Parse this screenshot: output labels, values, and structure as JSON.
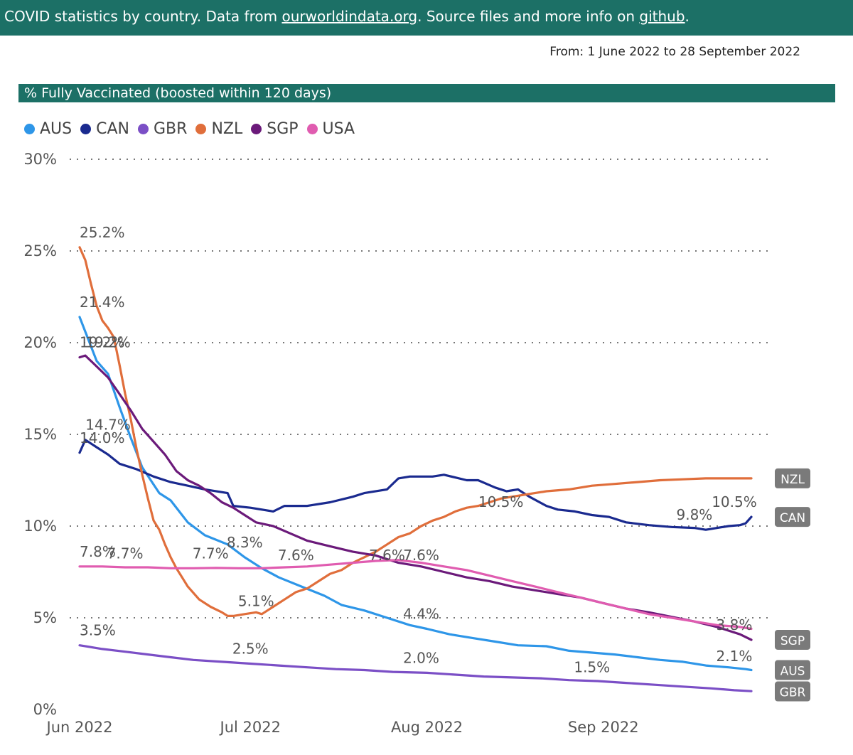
{
  "header": {
    "prefix": "COVID statistics by country. Data from ",
    "link1": "ourworldindata.org",
    "middle": ". Source files and more info on ",
    "link2": "github",
    "suffix": "."
  },
  "date_range": "From: 1 June 2022 to 28 September 2022",
  "chart_data": {
    "type": "line",
    "title": "% Fully Vaccinated (boosted within 120 days)",
    "xlabel": "",
    "ylabel": "",
    "ylim": [
      0,
      30
    ],
    "xlim_days": [
      0,
      119
    ],
    "y_ticks": [
      "0%",
      "5%",
      "10%",
      "15%",
      "20%",
      "25%",
      "30%"
    ],
    "x_ticks": [
      {
        "label": "Jun 2022",
        "day": 0
      },
      {
        "label": "Jul 2022",
        "day": 30
      },
      {
        "label": "Aug 2022",
        "day": 61
      },
      {
        "label": "Sep 2022",
        "day": 92
      }
    ],
    "grid": true,
    "legend_position": "top-left",
    "series": [
      {
        "name": "AUS",
        "color": "#2e96e8",
        "points": [
          [
            0,
            21.4
          ],
          [
            3,
            19.0
          ],
          [
            5,
            18.3
          ],
          [
            7,
            16.5
          ],
          [
            9,
            14.8
          ],
          [
            11,
            13.2
          ],
          [
            14,
            11.8
          ],
          [
            16,
            11.4
          ],
          [
            19,
            10.2
          ],
          [
            22,
            9.5
          ],
          [
            26,
            9.0
          ],
          [
            29,
            8.3
          ],
          [
            32,
            7.7
          ],
          [
            35,
            7.2
          ],
          [
            39,
            6.7
          ],
          [
            43,
            6.2
          ],
          [
            46,
            5.7
          ],
          [
            50,
            5.4
          ],
          [
            54,
            5.0
          ],
          [
            58,
            4.6
          ],
          [
            61,
            4.4
          ],
          [
            65,
            4.1
          ],
          [
            69,
            3.9
          ],
          [
            73,
            3.7
          ],
          [
            77,
            3.5
          ],
          [
            82,
            3.45
          ],
          [
            86,
            3.2
          ],
          [
            90,
            3.1
          ],
          [
            94,
            3.0
          ],
          [
            98,
            2.85
          ],
          [
            102,
            2.7
          ],
          [
            106,
            2.6
          ],
          [
            110,
            2.4
          ],
          [
            114,
            2.3
          ],
          [
            117,
            2.2
          ],
          [
            118,
            2.15
          ]
        ]
      },
      {
        "name": "CAN",
        "color": "#1a2a8f",
        "points": [
          [
            0,
            14.0
          ],
          [
            1,
            14.7
          ],
          [
            3,
            14.3
          ],
          [
            5,
            13.9
          ],
          [
            7,
            13.4
          ],
          [
            10,
            13.1
          ],
          [
            13,
            12.7
          ],
          [
            16,
            12.4
          ],
          [
            19,
            12.2
          ],
          [
            22,
            12.0
          ],
          [
            26,
            11.8
          ],
          [
            27,
            11.1
          ],
          [
            30,
            11.0
          ],
          [
            34,
            10.8
          ],
          [
            36,
            11.1
          ],
          [
            40,
            11.1
          ],
          [
            44,
            11.3
          ],
          [
            48,
            11.6
          ],
          [
            50,
            11.8
          ],
          [
            54,
            12.0
          ],
          [
            56,
            12.6
          ],
          [
            58,
            12.7
          ],
          [
            62,
            12.7
          ],
          [
            64,
            12.8
          ],
          [
            68,
            12.5
          ],
          [
            70,
            12.5
          ],
          [
            73,
            12.1
          ],
          [
            75,
            11.9
          ],
          [
            77,
            12.0
          ],
          [
            79,
            11.6
          ],
          [
            82,
            11.1
          ],
          [
            84,
            10.9
          ],
          [
            87,
            10.8
          ],
          [
            90,
            10.6
          ],
          [
            93,
            10.5
          ],
          [
            96,
            10.2
          ],
          [
            100,
            10.05
          ],
          [
            104,
            9.95
          ],
          [
            108,
            9.9
          ],
          [
            110,
            9.8
          ],
          [
            114,
            10.0
          ],
          [
            116,
            10.05
          ],
          [
            117,
            10.15
          ],
          [
            118,
            10.5
          ]
        ]
      },
      {
        "name": "GBR",
        "color": "#7b4fc6",
        "points": [
          [
            0,
            3.5
          ],
          [
            4,
            3.3
          ],
          [
            8,
            3.15
          ],
          [
            12,
            3.0
          ],
          [
            16,
            2.85
          ],
          [
            20,
            2.7
          ],
          [
            25,
            2.6
          ],
          [
            30,
            2.5
          ],
          [
            35,
            2.4
          ],
          [
            40,
            2.3
          ],
          [
            45,
            2.2
          ],
          [
            50,
            2.15
          ],
          [
            55,
            2.05
          ],
          [
            61,
            2.0
          ],
          [
            66,
            1.9
          ],
          [
            71,
            1.8
          ],
          [
            76,
            1.75
          ],
          [
            81,
            1.7
          ],
          [
            86,
            1.6
          ],
          [
            91,
            1.55
          ],
          [
            96,
            1.45
          ],
          [
            101,
            1.35
          ],
          [
            106,
            1.25
          ],
          [
            111,
            1.15
          ],
          [
            115,
            1.05
          ],
          [
            118,
            1.0
          ]
        ]
      },
      {
        "name": "NZL",
        "color": "#e06e3b",
        "points": [
          [
            0,
            25.2
          ],
          [
            1,
            24.5
          ],
          [
            2,
            23.2
          ],
          [
            3,
            22.0
          ],
          [
            4,
            21.2
          ],
          [
            5,
            20.8
          ],
          [
            6,
            20.3
          ],
          [
            7,
            18.8
          ],
          [
            8,
            17.2
          ],
          [
            9,
            15.8
          ],
          [
            10,
            14.2
          ],
          [
            11,
            12.8
          ],
          [
            12,
            11.5
          ],
          [
            13,
            10.3
          ],
          [
            14,
            9.8
          ],
          [
            15,
            9.0
          ],
          [
            16,
            8.3
          ],
          [
            17,
            7.7
          ],
          [
            18,
            7.2
          ],
          [
            19,
            6.7
          ],
          [
            21,
            6.0
          ],
          [
            23,
            5.6
          ],
          [
            25,
            5.3
          ],
          [
            26,
            5.1
          ],
          [
            27,
            5.1
          ],
          [
            29,
            5.2
          ],
          [
            31,
            5.3
          ],
          [
            32,
            5.2
          ],
          [
            34,
            5.6
          ],
          [
            36,
            6.0
          ],
          [
            38,
            6.4
          ],
          [
            40,
            6.6
          ],
          [
            42,
            7.0
          ],
          [
            44,
            7.4
          ],
          [
            46,
            7.6
          ],
          [
            48,
            8.0
          ],
          [
            50,
            8.3
          ],
          [
            52,
            8.6
          ],
          [
            54,
            9.0
          ],
          [
            56,
            9.4
          ],
          [
            58,
            9.6
          ],
          [
            60,
            10.0
          ],
          [
            62,
            10.3
          ],
          [
            64,
            10.5
          ],
          [
            66,
            10.8
          ],
          [
            68,
            11.0
          ],
          [
            70,
            11.1
          ],
          [
            72,
            11.3
          ],
          [
            74,
            11.5
          ],
          [
            76,
            11.6
          ],
          [
            78,
            11.7
          ],
          [
            82,
            11.9
          ],
          [
            86,
            12.0
          ],
          [
            90,
            12.2
          ],
          [
            94,
            12.3
          ],
          [
            98,
            12.4
          ],
          [
            102,
            12.5
          ],
          [
            106,
            12.55
          ],
          [
            110,
            12.6
          ],
          [
            114,
            12.6
          ],
          [
            118,
            12.6
          ]
        ]
      },
      {
        "name": "SGP",
        "color": "#6b1a7a",
        "points": [
          [
            0,
            19.2
          ],
          [
            1,
            19.3
          ],
          [
            3,
            18.7
          ],
          [
            5,
            18.1
          ],
          [
            7,
            17.2
          ],
          [
            9,
            16.3
          ],
          [
            11,
            15.3
          ],
          [
            13,
            14.6
          ],
          [
            15,
            13.9
          ],
          [
            17,
            13.0
          ],
          [
            19,
            12.5
          ],
          [
            21,
            12.2
          ],
          [
            23,
            11.8
          ],
          [
            25,
            11.3
          ],
          [
            27,
            11.0
          ],
          [
            29,
            10.6
          ],
          [
            31,
            10.2
          ],
          [
            34,
            10.0
          ],
          [
            37,
            9.6
          ],
          [
            40,
            9.2
          ],
          [
            44,
            8.9
          ],
          [
            48,
            8.6
          ],
          [
            52,
            8.4
          ],
          [
            56,
            8.0
          ],
          [
            60,
            7.8
          ],
          [
            64,
            7.5
          ],
          [
            68,
            7.2
          ],
          [
            72,
            7.0
          ],
          [
            76,
            6.7
          ],
          [
            80,
            6.5
          ],
          [
            84,
            6.3
          ],
          [
            88,
            6.1
          ],
          [
            92,
            5.8
          ],
          [
            96,
            5.5
          ],
          [
            100,
            5.3
          ],
          [
            104,
            5.05
          ],
          [
            108,
            4.8
          ],
          [
            112,
            4.5
          ],
          [
            116,
            4.1
          ],
          [
            118,
            3.8
          ]
        ]
      },
      {
        "name": "USA",
        "color": "#e05cb0",
        "points": [
          [
            0,
            7.8
          ],
          [
            4,
            7.8
          ],
          [
            8,
            7.75
          ],
          [
            12,
            7.75
          ],
          [
            16,
            7.7
          ],
          [
            20,
            7.7
          ],
          [
            24,
            7.72
          ],
          [
            28,
            7.7
          ],
          [
            32,
            7.7
          ],
          [
            36,
            7.75
          ],
          [
            40,
            7.8
          ],
          [
            44,
            7.9
          ],
          [
            48,
            8.0
          ],
          [
            52,
            8.1
          ],
          [
            56,
            8.15
          ],
          [
            60,
            8.0
          ],
          [
            64,
            7.8
          ],
          [
            68,
            7.6
          ],
          [
            72,
            7.3
          ],
          [
            76,
            7.0
          ],
          [
            80,
            6.7
          ],
          [
            84,
            6.4
          ],
          [
            88,
            6.1
          ],
          [
            92,
            5.8
          ],
          [
            96,
            5.5
          ],
          [
            100,
            5.2
          ],
          [
            104,
            5.0
          ],
          [
            108,
            4.8
          ],
          [
            112,
            4.6
          ],
          [
            116,
            4.5
          ],
          [
            118,
            4.4
          ]
        ]
      }
    ],
    "data_labels": [
      {
        "text": "25.2%",
        "day": 0,
        "value": 25.2
      },
      {
        "text": "21.4%",
        "day": 0,
        "value": 21.4
      },
      {
        "text": "19.2%",
        "day": 5,
        "value": 19.2
      },
      {
        "text": "19.2%",
        "day": 0,
        "value": 19.2
      },
      {
        "text": "14.7%",
        "day": 5,
        "value": 14.7
      },
      {
        "text": "14.0%",
        "day": 0,
        "value": 14.0
      },
      {
        "text": "7.8%",
        "day": 0,
        "value": 7.8
      },
      {
        "text": "7.7%",
        "day": 8,
        "value": 7.7
      },
      {
        "text": "3.5%",
        "day": 0,
        "value": 3.5
      },
      {
        "text": "8.3%",
        "day": 29,
        "value": 8.3
      },
      {
        "text": "7.7%",
        "day": 23,
        "value": 7.7
      },
      {
        "text": "7.6%",
        "day": 38,
        "value": 7.6
      },
      {
        "text": "5.1%",
        "day": 31,
        "value": 5.1
      },
      {
        "text": "2.5%",
        "day": 30,
        "value": 2.5
      },
      {
        "text": "7.6%",
        "day": 54,
        "value": 7.6
      },
      {
        "text": "7.6%",
        "day": 60,
        "value": 7.6
      },
      {
        "text": "4.4%",
        "day": 60,
        "value": 4.4
      },
      {
        "text": "2.0%",
        "day": 60,
        "value": 2.0
      },
      {
        "text": "10.5%",
        "day": 74,
        "value": 10.5
      },
      {
        "text": "1.5%",
        "day": 90,
        "value": 1.5
      },
      {
        "text": "9.8%",
        "day": 108,
        "value": 9.8
      },
      {
        "text": "10.5%",
        "day": 115,
        "value": 10.5
      },
      {
        "text": "3.8%",
        "day": 115,
        "value": 3.8
      },
      {
        "text": "2.1%",
        "day": 115,
        "value": 2.1
      }
    ],
    "end_tags": [
      {
        "text": "NZL",
        "value": 12.6
      },
      {
        "text": "CAN",
        "value": 10.5
      },
      {
        "text": "SGP",
        "value": 3.8
      },
      {
        "text": "AUS",
        "value": 2.15
      },
      {
        "text": "GBR",
        "value": 1.0
      }
    ]
  }
}
